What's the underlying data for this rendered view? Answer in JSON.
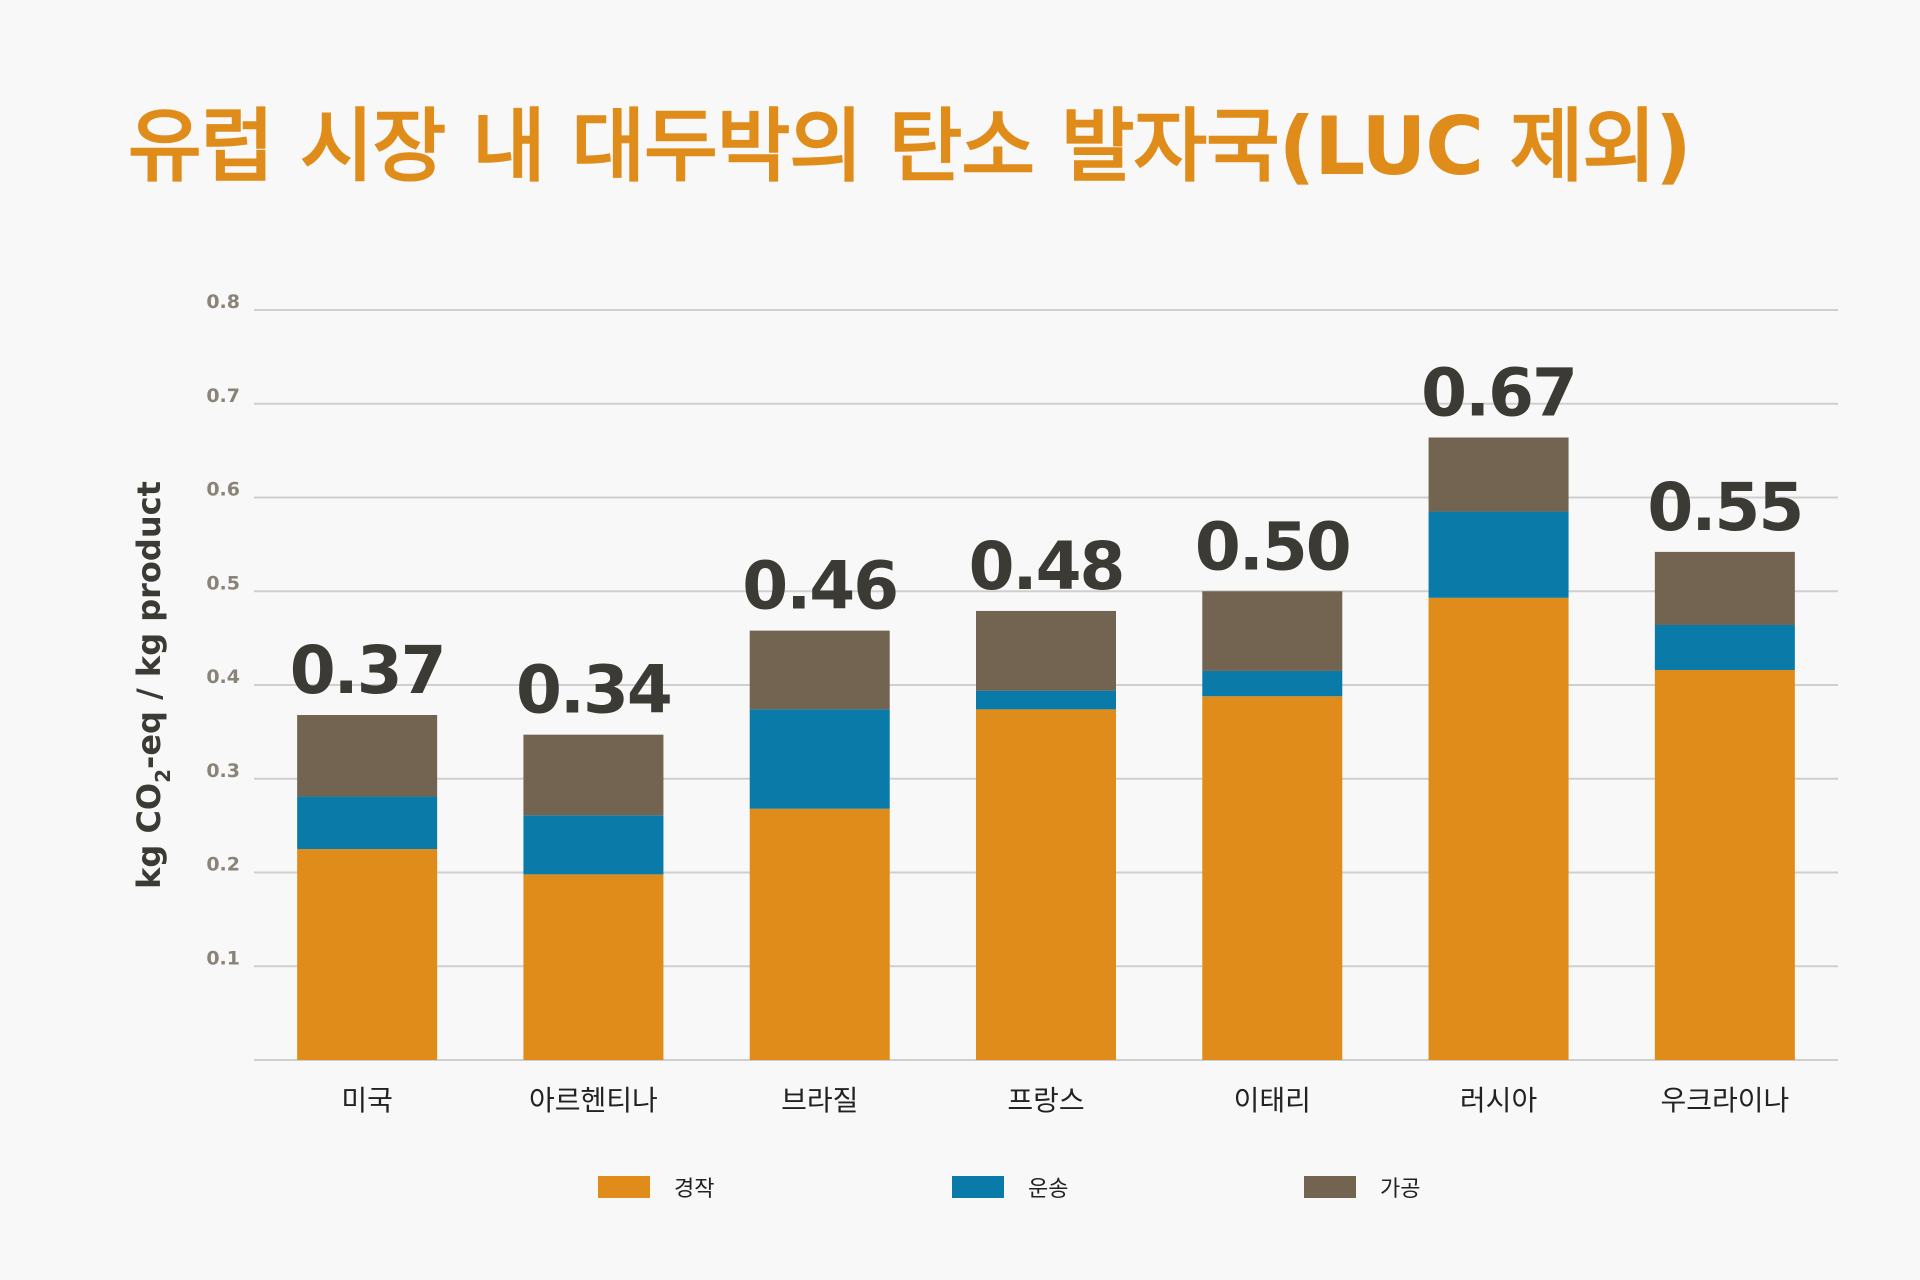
{
  "title": "유럽 시장 내 대두박의 탄소 발자국(LUC 제외)",
  "chart_data": {
    "type": "bar",
    "stacked": true,
    "title": "유럽 시장 내 대두박의 탄소 발자국(LUC 제외)",
    "ylabel_parts": [
      "kg CO",
      "2",
      "-eq / kg product"
    ],
    "ylim": [
      0,
      0.8
    ],
    "yticks": [
      0.1,
      0.2,
      0.3,
      0.4,
      0.5,
      0.6,
      0.7,
      0.8
    ],
    "grid": true,
    "legend_position": "bottom",
    "categories": [
      "미국",
      "아르헨티나",
      "브라질",
      "프랑스",
      "이태리",
      "러시아",
      "우크라이나"
    ],
    "series": [
      {
        "name": "경작",
        "color": "#e08c1a",
        "values": [
          0.225,
          0.198,
          0.268,
          0.374,
          0.388,
          0.493,
          0.416
        ]
      },
      {
        "name": "운송",
        "color": "#0a7aa8",
        "values": [
          0.056,
          0.063,
          0.106,
          0.02,
          0.027,
          0.092,
          0.048
        ]
      },
      {
        "name": "가공",
        "color": "#726451",
        "values": [
          0.087,
          0.086,
          0.084,
          0.085,
          0.085,
          0.079,
          0.078
        ]
      }
    ],
    "totals": [
      "0.37",
      "0.34",
      "0.46",
      "0.48",
      "0.50",
      "0.67",
      "0.55"
    ]
  }
}
